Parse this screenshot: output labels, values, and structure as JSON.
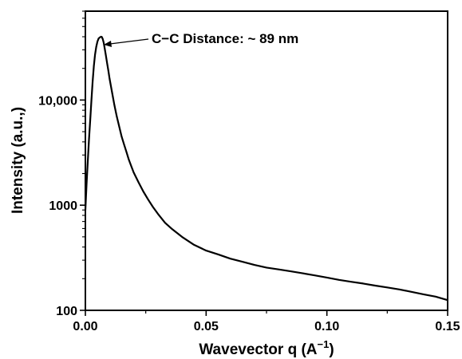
{
  "chart_data": {
    "type": "line",
    "title": "",
    "xlabel_main": "Wavevector q (A",
    "xlabel_sup": "−1",
    "xlabel_close": ")",
    "ylabel": "Intensity (a.u.,)",
    "x_scale": "linear",
    "y_scale": "log",
    "xlim": [
      0,
      0.15
    ],
    "ylim": [
      100,
      70000
    ],
    "x_ticks": [
      0,
      0.05,
      0.1,
      0.15
    ],
    "x_tick_labels": [
      "0.00",
      "0.05",
      "0.10",
      "0.15"
    ],
    "y_ticks": [
      100,
      1000,
      10000
    ],
    "y_tick_labels": [
      "100",
      "1000",
      "10,000"
    ],
    "grid": false,
    "legend": "none",
    "annotation": {
      "text": "C−C Distance: ~ 89 nm",
      "points_to": [
        0.0068,
        40000
      ]
    },
    "series": [
      {
        "color": "#000000",
        "x": [
          0.0,
          0.0005,
          0.001,
          0.0015,
          0.002,
          0.0025,
          0.003,
          0.0035,
          0.004,
          0.0045,
          0.005,
          0.0055,
          0.006,
          0.0065,
          0.0068,
          0.0072,
          0.0076,
          0.008,
          0.0085,
          0.009,
          0.0095,
          0.01,
          0.011,
          0.012,
          0.013,
          0.014,
          0.015,
          0.016,
          0.017,
          0.018,
          0.019,
          0.02,
          0.022,
          0.024,
          0.026,
          0.028,
          0.03,
          0.033,
          0.036,
          0.04,
          0.045,
          0.05,
          0.055,
          0.06,
          0.065,
          0.07,
          0.075,
          0.08,
          0.085,
          0.09,
          0.095,
          0.1,
          0.105,
          0.11,
          0.115,
          0.12,
          0.125,
          0.13,
          0.135,
          0.14,
          0.145,
          0.15
        ],
        "y": [
          900,
          1600,
          2600,
          4200,
          6500,
          10000,
          15000,
          21000,
          27000,
          32000,
          36000,
          38500,
          39500,
          40000,
          39800,
          38000,
          35000,
          31000,
          26500,
          22500,
          19000,
          16000,
          12000,
          9000,
          7000,
          5600,
          4500,
          3800,
          3200,
          2700,
          2350,
          2050,
          1650,
          1350,
          1130,
          960,
          830,
          680,
          590,
          500,
          420,
          370,
          340,
          310,
          290,
          270,
          255,
          245,
          235,
          225,
          215,
          205,
          195,
          187,
          180,
          172,
          165,
          158,
          150,
          142,
          135,
          125
        ]
      }
    ]
  }
}
